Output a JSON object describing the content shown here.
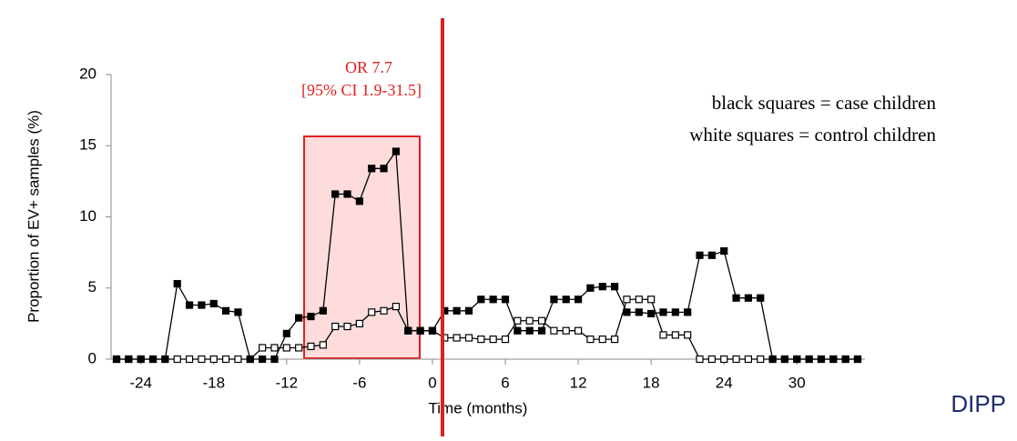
{
  "chart_data": {
    "type": "line",
    "y_label": "Proportion of EV+ samples (%)",
    "x_label": "Time (months)",
    "annotations": [
      "OR 7.7",
      "[95% CI 1.9-31.5]",
      "black squares = case children",
      "white squares = control children"
    ],
    "source": "DIPP",
    "x": [
      -26,
      -25,
      -24,
      -23,
      -22,
      -21,
      -20,
      -19,
      -18,
      -17,
      -16,
      -15,
      -14,
      -13,
      -12,
      -11,
      -10,
      -9,
      -8,
      -7,
      -6,
      -5,
      -4,
      -3,
      -2,
      -1,
      0,
      1,
      2,
      3,
      4,
      5,
      6,
      7,
      8,
      9,
      10,
      11,
      12,
      13,
      14,
      15,
      16,
      17,
      18,
      19,
      20,
      21,
      22,
      23,
      24,
      25,
      26,
      27,
      28,
      29,
      30,
      31,
      32,
      33,
      34,
      35
    ],
    "series": [
      {
        "color": "#ffffff",
        "values": [
          0,
          0,
          0,
          0,
          0,
          0,
          0,
          0,
          0,
          0,
          0,
          0,
          0.8,
          0.8,
          0.8,
          0.8,
          0.9,
          1.0,
          2.3,
          2.3,
          2.5,
          3.3,
          3.4,
          3.7,
          2.0,
          2.0,
          2.0,
          1.5,
          1.5,
          1.5,
          1.4,
          1.4,
          1.4,
          2.7,
          2.7,
          2.7,
          2.0,
          2.0,
          2.0,
          1.4,
          1.4,
          1.4,
          4.2,
          4.2,
          4.2,
          1.7,
          1.7,
          1.7,
          0,
          0,
          0,
          0,
          0,
          0,
          0,
          0,
          0,
          0,
          0,
          0,
          0,
          0
        ]
      },
      {
        "color": "#000000",
        "values": [
          0,
          0,
          0,
          0,
          0,
          5.3,
          3.8,
          3.8,
          3.9,
          3.4,
          3.3,
          0,
          0,
          0,
          1.8,
          2.9,
          3.0,
          3.4,
          11.6,
          11.6,
          11.1,
          13.4,
          13.4,
          14.6,
          2.0,
          2.0,
          2.0,
          3.4,
          3.4,
          3.4,
          4.2,
          4.2,
          4.2,
          2.0,
          2.0,
          2.0,
          4.2,
          4.2,
          4.2,
          5.0,
          5.1,
          5.1,
          3.3,
          3.3,
          3.2,
          3.3,
          3.3,
          3.3,
          7.3,
          7.3,
          7.6,
          4.3,
          4.3,
          4.3,
          0,
          0,
          0,
          0,
          0,
          0,
          0,
          0
        ]
      }
    ],
    "xlim": [
      -26.45,
      35.6
    ],
    "xticks": [
      -24,
      -18,
      -12,
      -6,
      0,
      6,
      12,
      18,
      24,
      30
    ],
    "ylim": [
      0,
      20
    ],
    "yticks": [
      0,
      5,
      10,
      15,
      20
    ]
  }
}
